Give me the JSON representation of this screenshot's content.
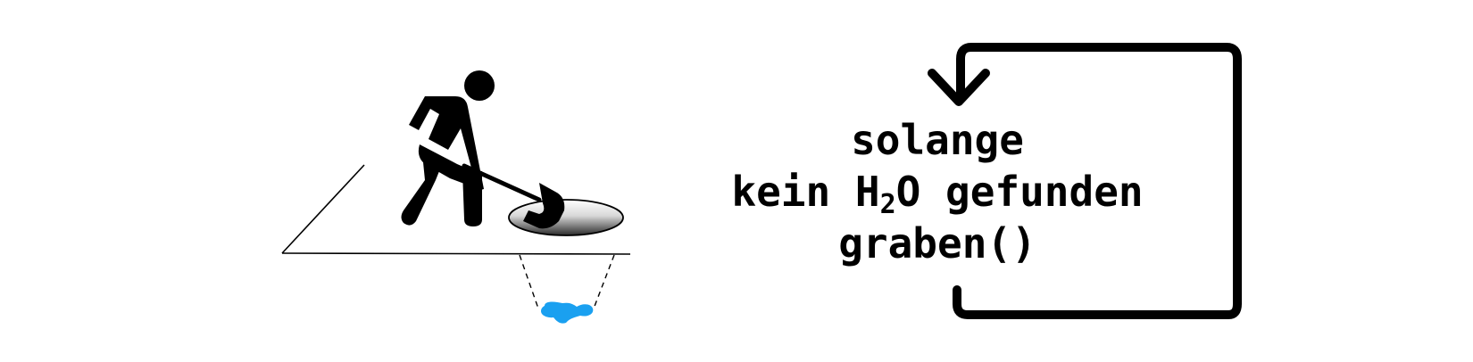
{
  "loop_text": {
    "condition_word": "solange",
    "condition_prefix": "kein H",
    "condition_subscript": "2",
    "condition_suffix": "O gefunden",
    "body": "graben()"
  },
  "icons": {
    "worker": "digging-worker-icon",
    "hole": "hole-icon",
    "water": "water-puddle-icon",
    "loop_arrow": "loop-arrow-icon"
  },
  "colors": {
    "stroke": "#000000",
    "water": "#1aa0f0",
    "background": "#ffffff"
  }
}
